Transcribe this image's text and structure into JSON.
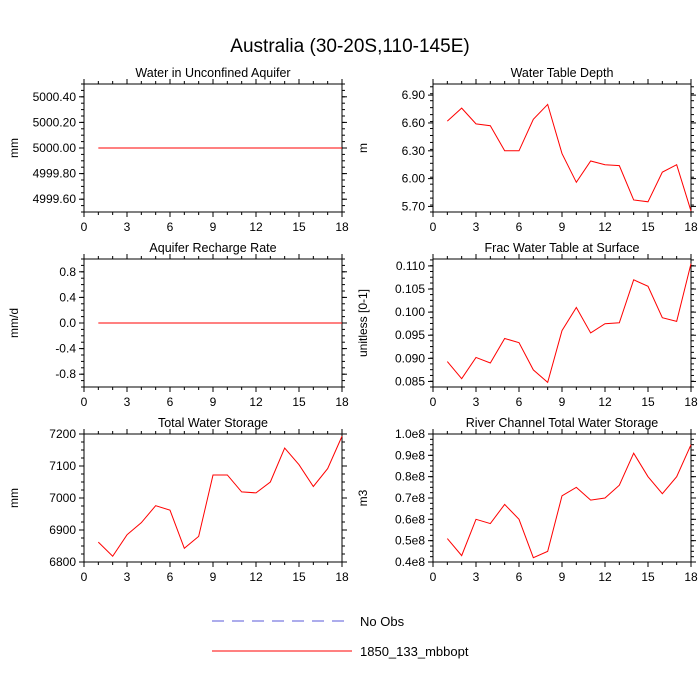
{
  "title": "Australia (30-20S,110-145E)",
  "colors": {
    "model": "#ff0000",
    "obs": "#5a5ad8",
    "axis": "#000000"
  },
  "legend": {
    "entries": [
      {
        "label": "No Obs",
        "style": "dashed",
        "color": "#5a5ad8"
      },
      {
        "label": "1850_133_mbbopt",
        "style": "solid",
        "color": "#ff0000"
      }
    ]
  },
  "chart_data": [
    {
      "type": "line",
      "title": "Water in Unconfined Aquifer",
      "ylabel": "mm",
      "xlim": [
        0,
        18
      ],
      "ylim": [
        4999.5,
        5000.5
      ],
      "xticks": [
        0,
        3,
        6,
        9,
        12,
        15,
        18
      ],
      "yticks": [
        4999.6,
        4999.8,
        5000.0,
        5000.2,
        5000.4
      ],
      "yticklabels": [
        "4999.60",
        "4999.80",
        "5000.00",
        "5000.20",
        "5000.40"
      ],
      "x": [
        1,
        18
      ],
      "series": [
        {
          "values": [
            5000.0,
            5000.0
          ]
        }
      ]
    },
    {
      "type": "line",
      "title": "Water Table Depth",
      "ylabel": "m",
      "xlim": [
        0,
        18
      ],
      "ylim": [
        5.64,
        7.02
      ],
      "xticks": [
        0,
        3,
        6,
        9,
        12,
        15,
        18
      ],
      "yticks": [
        5.7,
        6.0,
        6.3,
        6.6,
        6.9
      ],
      "yticklabels": [
        "5.70",
        "6.00",
        "6.30",
        "6.60",
        "6.90"
      ],
      "x": [
        1,
        2,
        3,
        4,
        5,
        6,
        7,
        8,
        9,
        10,
        11,
        12,
        13,
        14,
        15,
        16,
        17,
        18
      ],
      "series": [
        {
          "values": [
            6.62,
            6.76,
            6.59,
            6.57,
            6.3,
            6.3,
            6.64,
            6.8,
            6.27,
            5.96,
            6.19,
            6.15,
            6.14,
            5.77,
            5.75,
            6.07,
            6.15,
            5.65
          ]
        }
      ]
    },
    {
      "type": "line",
      "title": "Aquifer Recharge Rate",
      "ylabel": "mm/d",
      "xlim": [
        0,
        18
      ],
      "ylim": [
        -1.0,
        1.0
      ],
      "xticks": [
        0,
        3,
        6,
        9,
        12,
        15,
        18
      ],
      "yticks": [
        -0.8,
        -0.4,
        0.0,
        0.4,
        0.8
      ],
      "yticklabels": [
        "-0.8",
        "-0.4",
        "0.0",
        "0.4",
        "0.8"
      ],
      "x": [
        1,
        18
      ],
      "series": [
        {
          "values": [
            0.0,
            0.0
          ]
        }
      ]
    },
    {
      "type": "line",
      "title": "Frac Water Table at Surface",
      "ylabel": "unitless [0-1]",
      "xlim": [
        0,
        18
      ],
      "ylim": [
        0.0838,
        0.1115
      ],
      "xticks": [
        0,
        3,
        6,
        9,
        12,
        15,
        18
      ],
      "yticks": [
        0.085,
        0.09,
        0.095,
        0.1,
        0.105,
        0.11
      ],
      "yticklabels": [
        "0.085",
        "0.090",
        "0.095",
        "0.100",
        "0.105",
        "0.110"
      ],
      "x": [
        1,
        2,
        3,
        4,
        5,
        6,
        7,
        8,
        9,
        10,
        11,
        12,
        13,
        14,
        15,
        16,
        17,
        18
      ],
      "series": [
        {
          "values": [
            0.0893,
            0.0856,
            0.0902,
            0.089,
            0.0943,
            0.0934,
            0.0875,
            0.0848,
            0.096,
            0.101,
            0.0955,
            0.0975,
            0.0977,
            0.107,
            0.1056,
            0.0988,
            0.098,
            0.1105
          ]
        }
      ]
    },
    {
      "type": "line",
      "title": "Total Water Storage",
      "ylabel": "mm",
      "xlim": [
        0,
        18
      ],
      "ylim": [
        6800,
        7200
      ],
      "xticks": [
        0,
        3,
        6,
        9,
        12,
        15,
        18
      ],
      "yticks": [
        6800,
        6900,
        7000,
        7100,
        7200
      ],
      "yticklabels": [
        "6800",
        "6900",
        "7000",
        "7100",
        "7200"
      ],
      "x": [
        1,
        2,
        3,
        4,
        5,
        6,
        7,
        8,
        9,
        10,
        11,
        12,
        13,
        14,
        15,
        16,
        17,
        18
      ],
      "series": [
        {
          "values": [
            6862,
            6818,
            6885,
            6923,
            6976,
            6962,
            6843,
            6880,
            7072,
            7072,
            7019,
            7016,
            7050,
            7156,
            7104,
            7036,
            7092,
            7193
          ]
        }
      ]
    },
    {
      "type": "line",
      "title": "River Channel Total Water Storage",
      "ylabel": "m3",
      "xlim": [
        0,
        18
      ],
      "ylim": [
        0.4,
        1.0
      ],
      "xticks": [
        0,
        3,
        6,
        9,
        12,
        15,
        18
      ],
      "yticks": [
        0.4,
        0.5,
        0.6,
        0.7,
        0.8,
        0.9,
        1.0
      ],
      "yticklabels": [
        "0.4e8",
        "0.5e8",
        "0.6e8",
        "0.7e8",
        "0.8e8",
        "0.9e8",
        "1.0e8"
      ],
      "x": [
        1,
        2,
        3,
        4,
        5,
        6,
        7,
        8,
        9,
        10,
        11,
        12,
        13,
        14,
        15,
        16,
        17,
        18
      ],
      "series": [
        {
          "values": [
            0.51,
            0.43,
            0.6,
            0.58,
            0.67,
            0.6,
            0.42,
            0.45,
            0.71,
            0.75,
            0.69,
            0.7,
            0.76,
            0.91,
            0.8,
            0.72,
            0.8,
            0.95
          ]
        }
      ]
    }
  ]
}
